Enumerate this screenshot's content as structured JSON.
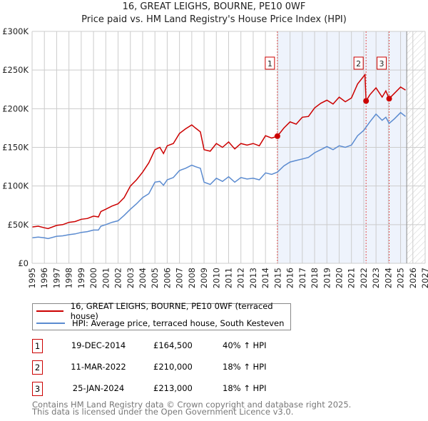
{
  "chart_data": {
    "type": "line",
    "title": "16, GREAT LEIGHS, BOURNE, PE10 0WF",
    "subtitle": "Price paid vs. HM Land Registry's House Price Index (HPI)",
    "xlim": [
      1995,
      2027
    ],
    "ylim": [
      0,
      300000
    ],
    "x_ticks": [
      "1995",
      "1996",
      "1997",
      "1998",
      "1999",
      "2000",
      "2001",
      "2002",
      "2003",
      "2004",
      "2005",
      "2006",
      "2007",
      "2008",
      "2009",
      "2010",
      "2011",
      "2012",
      "2013",
      "2014",
      "2015",
      "2016",
      "2017",
      "2018",
      "2019",
      "2020",
      "2021",
      "2022",
      "2023",
      "2024",
      "2025",
      "2026",
      "2027"
    ],
    "y_ticks": [
      {
        "v": 0,
        "label": "£0"
      },
      {
        "v": 50000,
        "label": "£50K"
      },
      {
        "v": 100000,
        "label": "£100K"
      },
      {
        "v": 150000,
        "label": "£150K"
      },
      {
        "v": 200000,
        "label": "£200K"
      },
      {
        "v": 250000,
        "label": "£250K"
      },
      {
        "v": 300000,
        "label": "£300K"
      }
    ],
    "grid": true,
    "shaded_range": [
      2014.97,
      2025.5
    ],
    "hatched_range": [
      2025.5,
      2027
    ],
    "series": [
      {
        "name": "16, GREAT LEIGHS, BOURNE, PE10 0WF (terraced house)",
        "color": "#cc0000",
        "x": [
          1995,
          1995.5,
          1996,
          1996.3,
          1997,
          1997.5,
          1998,
          1998.5,
          1999,
          1999.5,
          2000,
          2000.4,
          2000.6,
          2001,
          2001.5,
          2002,
          2002.5,
          2003,
          2003.5,
          2004,
          2004.5,
          2005,
          2005.4,
          2005.7,
          2006,
          2006.5,
          2007,
          2007.5,
          2008,
          2008.3,
          2008.7,
          2009,
          2009.5,
          2010,
          2010.5,
          2011,
          2011.5,
          2012,
          2012.5,
          2013,
          2013.5,
          2014,
          2014.5,
          2014.97,
          2015.5,
          2016,
          2016.5,
          2017,
          2017.5,
          2018,
          2018.5,
          2019,
          2019.5,
          2020,
          2020.5,
          2021,
          2021.5,
          2022.1,
          2022.19,
          2022.5,
          2023,
          2023.5,
          2023.8,
          2024.07,
          2024.5,
          2025,
          2025.4
        ],
        "y": [
          47000,
          48000,
          46000,
          45000,
          49000,
          50000,
          53000,
          54000,
          57000,
          58000,
          61000,
          60000,
          67000,
          70000,
          74000,
          77000,
          85000,
          100000,
          108000,
          118000,
          130000,
          147000,
          150000,
          142000,
          152000,
          155000,
          168000,
          174000,
          179000,
          175000,
          170000,
          147000,
          145000,
          155000,
          150000,
          157000,
          148000,
          155000,
          153000,
          155000,
          152000,
          165000,
          162000,
          164500,
          175000,
          183000,
          180000,
          189000,
          190000,
          201000,
          207000,
          211000,
          206000,
          215000,
          209000,
          214000,
          232000,
          244000,
          210000,
          218000,
          227000,
          215000,
          223000,
          213000,
          220000,
          228000,
          224000
        ]
      },
      {
        "name": "HPI: Average price, terraced house, South Kesteven",
        "color": "#5b8bd0",
        "x": [
          1995,
          1995.5,
          1996,
          1996.3,
          1997,
          1997.5,
          1998,
          1998.5,
          1999,
          1999.5,
          2000,
          2000.4,
          2000.6,
          2001,
          2001.5,
          2002,
          2002.5,
          2003,
          2003.5,
          2004,
          2004.5,
          2005,
          2005.4,
          2005.7,
          2006,
          2006.5,
          2007,
          2007.5,
          2008,
          2008.3,
          2008.7,
          2009,
          2009.5,
          2010,
          2010.5,
          2011,
          2011.5,
          2012,
          2012.5,
          2013,
          2013.5,
          2014,
          2014.5,
          2014.97,
          2015.5,
          2016,
          2016.5,
          2017,
          2017.5,
          2018,
          2018.5,
          2019,
          2019.5,
          2020,
          2020.5,
          2021,
          2021.5,
          2022,
          2022.5,
          2023,
          2023.5,
          2023.8,
          2024.07,
          2024.5,
          2025,
          2025.4
        ],
        "y": [
          33000,
          34000,
          33000,
          32000,
          35000,
          35500,
          37000,
          38000,
          40000,
          41000,
          43000,
          43000,
          48000,
          50000,
          53000,
          55000,
          62000,
          70000,
          77000,
          85000,
          90000,
          105000,
          106000,
          101000,
          108000,
          111000,
          120000,
          123000,
          127000,
          125000,
          123000,
          105000,
          102000,
          110000,
          106000,
          112000,
          105000,
          111000,
          109000,
          110000,
          108000,
          117000,
          115000,
          118000,
          126000,
          131000,
          133000,
          135000,
          137000,
          143000,
          147000,
          151000,
          147000,
          152000,
          150000,
          153000,
          165000,
          172000,
          183000,
          193000,
          185000,
          189000,
          181000,
          187000,
          195000,
          190000
        ]
      }
    ],
    "sales": [
      {
        "n": "1",
        "x": 2014.97,
        "y": 164500
      },
      {
        "n": "2",
        "x": 2022.19,
        "y": 210000
      },
      {
        "n": "3",
        "x": 2024.07,
        "y": 213000
      }
    ]
  },
  "legend": {
    "property": "16, GREAT LEIGHS, BOURNE, PE10 0WF (terraced house)",
    "hpi": "HPI: Average price, terraced house, South Kesteven"
  },
  "transactions": [
    {
      "n": "1",
      "date": "19-DEC-2014",
      "price": "£164,500",
      "hpi": "40% ↑ HPI"
    },
    {
      "n": "2",
      "date": "11-MAR-2022",
      "price": "£210,000",
      "hpi": "18% ↑ HPI"
    },
    {
      "n": "3",
      "date": "25-JAN-2024",
      "price": "£213,000",
      "hpi": "18% ↑ HPI"
    }
  ],
  "footer": {
    "line1": "Contains HM Land Registry data © Crown copyright and database right 2025.",
    "line2": "This data is licensed under the Open Government Licence v3.0."
  }
}
